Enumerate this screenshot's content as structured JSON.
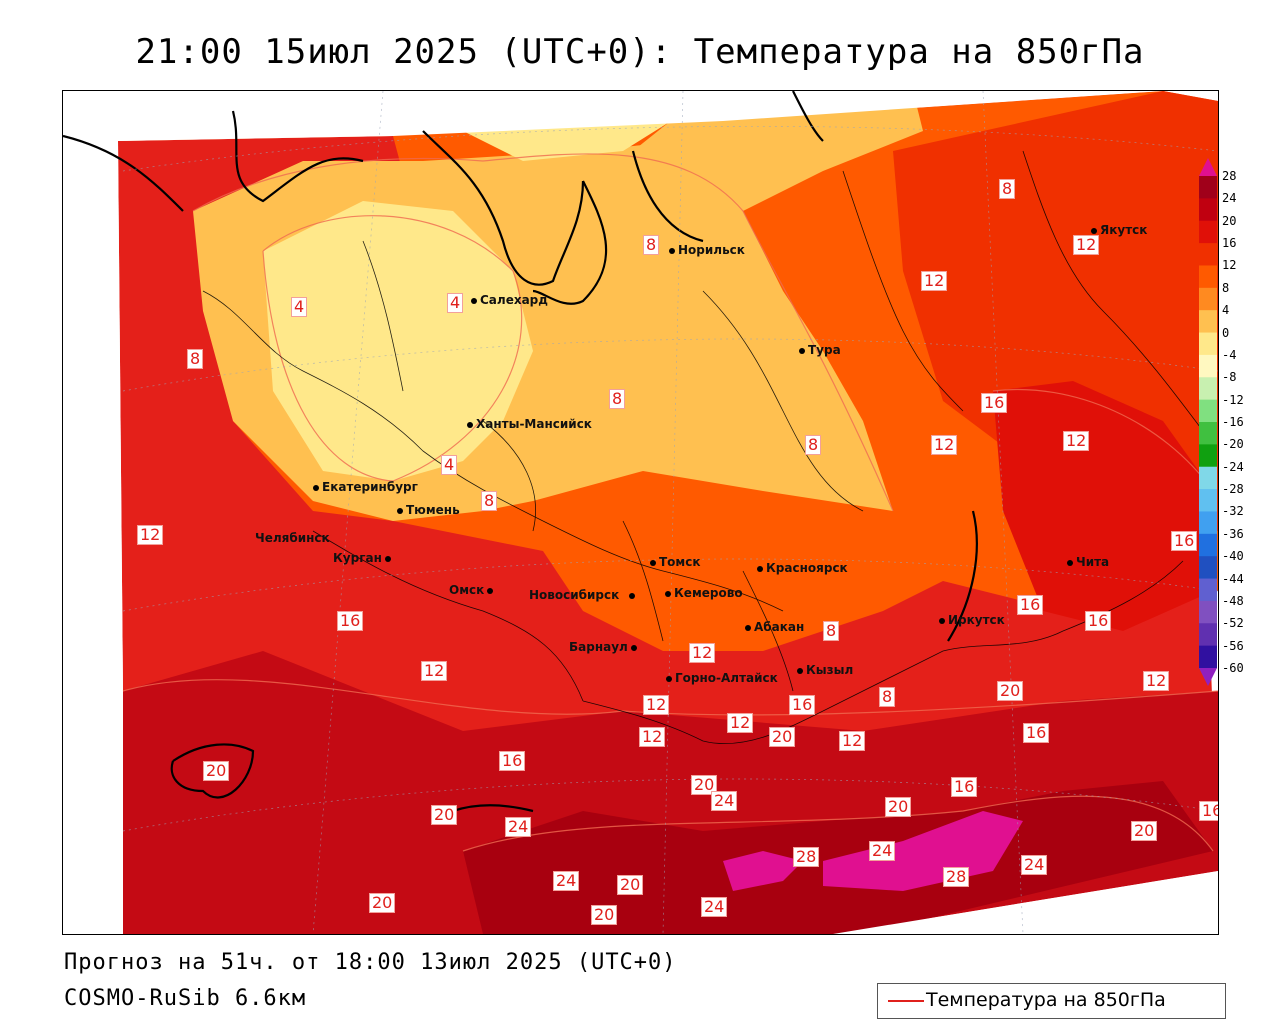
{
  "title": "21:00 15июл 2025 (UTC+0): Температура на 850гПа",
  "footer": {
    "forecast": "Прогноз на 51ч. от 18:00 13июл 2025 (UTC+0)",
    "model": "COSMO-RuSib 6.6км"
  },
  "legend": {
    "label": "Температура на 850гПа",
    "line_color": "#e0201c"
  },
  "colorbar": {
    "labels": [
      "28",
      "24",
      "20",
      "16",
      "12",
      "8",
      "4",
      "0",
      "-4",
      "-8",
      "-12",
      "-16",
      "-20",
      "-24",
      "-28",
      "-32",
      "-36",
      "-40",
      "-44",
      "-48",
      "-52",
      "-56",
      "-60"
    ],
    "colors": [
      "#a0001a",
      "#c00010",
      "#e01008",
      "#f03000",
      "#ff5a00",
      "#ff8a20",
      "#ffc050",
      "#ffe88a",
      "#fff8c0",
      "#c8f0b0",
      "#80e080",
      "#40c040",
      "#10a010",
      "#80d8e8",
      "#60c0f0",
      "#40a0f0",
      "#2070e0",
      "#2050c0",
      "#6060d0",
      "#8050c0",
      "#6030b0",
      "#3010a0"
    ]
  },
  "cities": [
    {
      "name": "Норильск"
    },
    {
      "name": "Якутск"
    },
    {
      "name": "Салехард"
    },
    {
      "name": "Тура"
    },
    {
      "name": "Ханты-Мансийск"
    },
    {
      "name": "Екатеринбург"
    },
    {
      "name": "Тюмень"
    },
    {
      "name": "Челябинск"
    },
    {
      "name": "Курган"
    },
    {
      "name": "Томск"
    },
    {
      "name": "Красноярск"
    },
    {
      "name": "Омск"
    },
    {
      "name": "Новосибирск"
    },
    {
      "name": "Кемерово"
    },
    {
      "name": "Чита"
    },
    {
      "name": "Иркутск"
    },
    {
      "name": "Абакан"
    },
    {
      "name": "Барнаул"
    },
    {
      "name": "Горно-Алтайск"
    },
    {
      "name": "Кызыл"
    }
  ],
  "isolines": [
    "4",
    "8",
    "8",
    "12",
    "8",
    "4",
    "4",
    "8",
    "8",
    "12",
    "16",
    "12",
    "12",
    "8",
    "16",
    "16",
    "12",
    "16",
    "16",
    "16",
    "12",
    "12",
    "12",
    "8",
    "12",
    "16",
    "12",
    "8",
    "12",
    "20",
    "16",
    "20",
    "20",
    "12",
    "16",
    "20",
    "24",
    "20",
    "16",
    "16",
    "20",
    "24",
    "20",
    "24",
    "28",
    "24",
    "28",
    "24",
    "20",
    "20",
    "20",
    "20",
    "24"
  ]
}
